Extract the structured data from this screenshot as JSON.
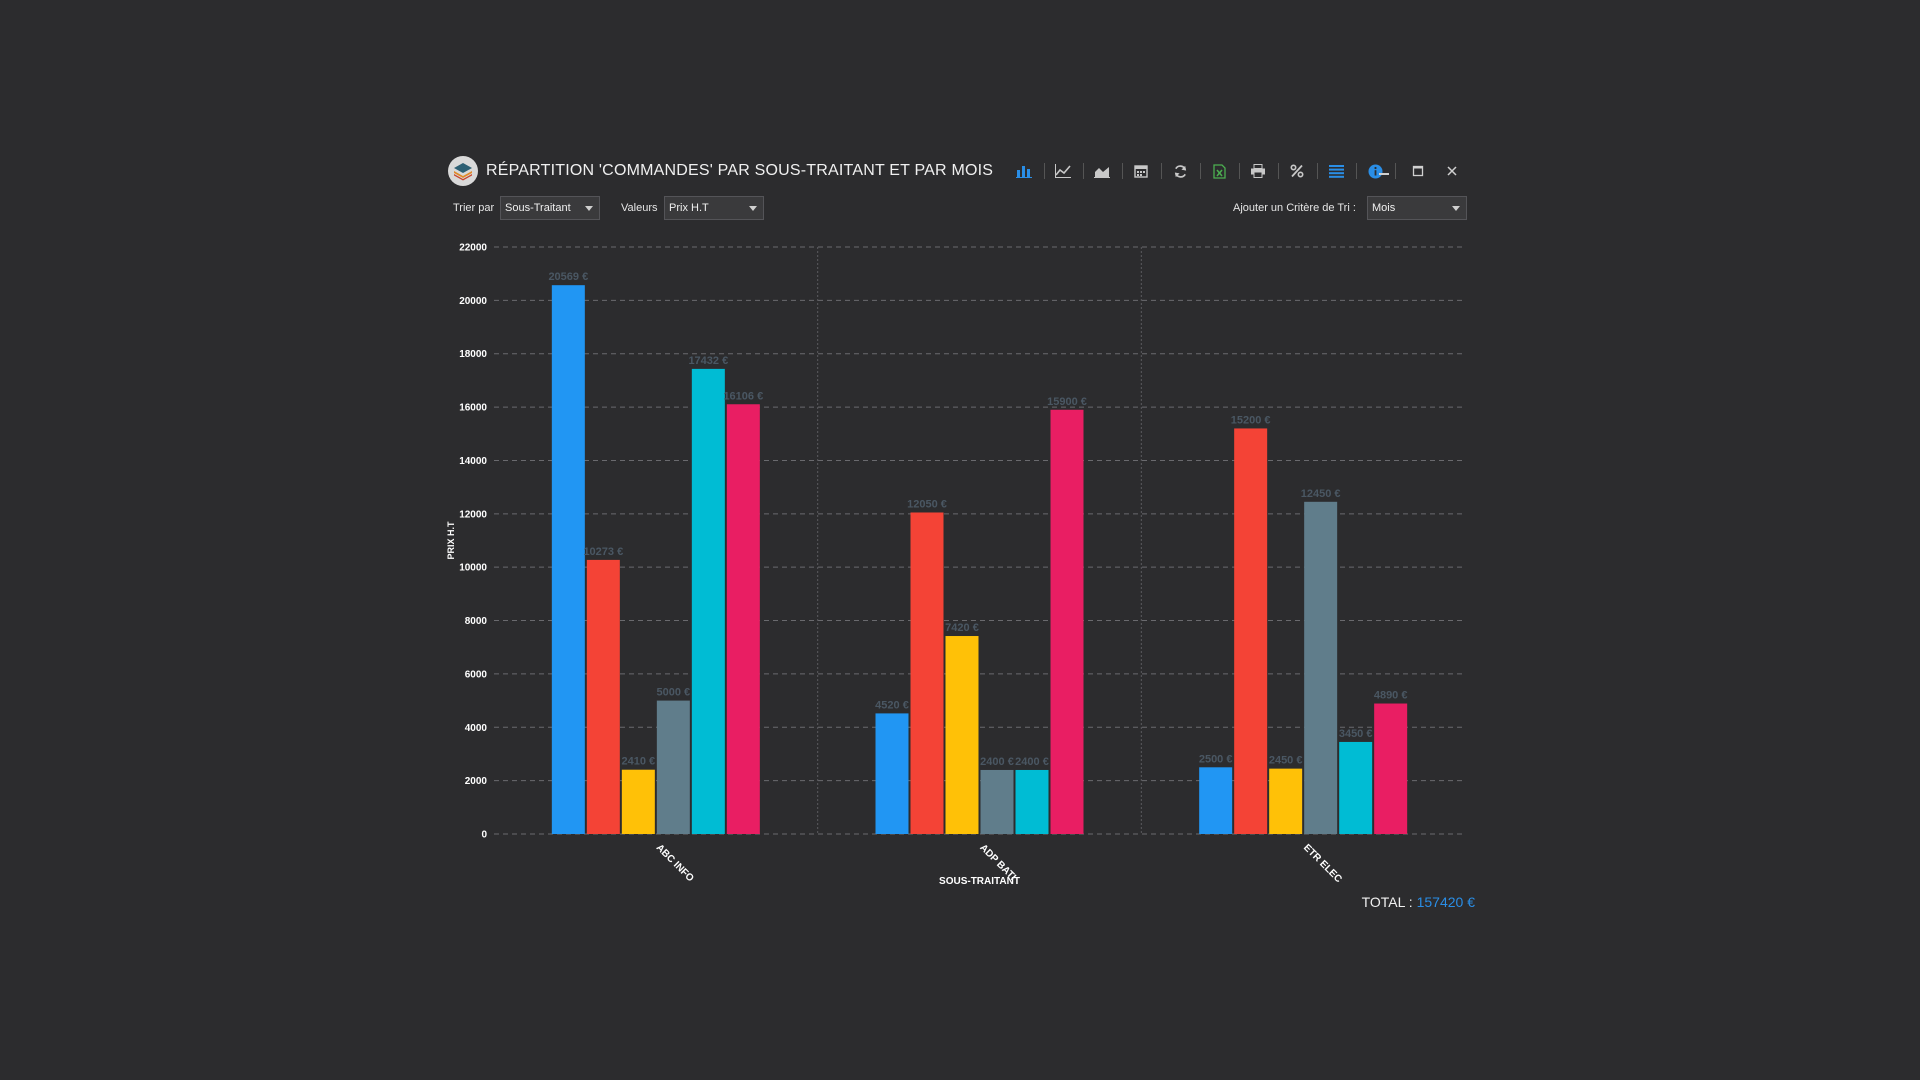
{
  "window": {
    "title": "RÉPARTITION 'COMMANDES' PAR SOUS-TRAITANT ET PAR MOIS",
    "toolbar_icons": [
      "bar-chart-icon",
      "line-chart-icon",
      "area-chart-icon",
      "calendar-icon",
      "refresh-icon",
      "excel-export-icon",
      "print-icon",
      "percent-icon",
      "list-icon",
      "info-icon"
    ],
    "controls": [
      "minimize-icon",
      "maximize-icon",
      "close-icon"
    ]
  },
  "filters": {
    "sort_label": "Trier par",
    "sort_value": "Sous-Traitant",
    "values_label": "Valeurs",
    "values_value": "Prix H.T",
    "criteria_label": "Ajouter un Critère de Tri :",
    "criteria_value": "Mois"
  },
  "chart_data": {
    "type": "bar",
    "xlabel": "SOUS-TRAITANT",
    "ylabel": "PRIX H.T",
    "ylim": [
      0,
      22000
    ],
    "yticks": [
      0,
      2000,
      4000,
      6000,
      8000,
      10000,
      12000,
      14000,
      16000,
      18000,
      20000,
      22000
    ],
    "categories": [
      "ABC INFO",
      "ADP BATI",
      "ETR ELEC"
    ],
    "value_suffix": " €",
    "grid": true,
    "series_colors": [
      "#2196f3",
      "#f44336",
      "#ffc107",
      "#607d8b",
      "#00bcd4",
      "#e91e63"
    ],
    "series": [
      {
        "values": [
          20569,
          4520,
          2500
        ]
      },
      {
        "values": [
          10273,
          12050,
          15200
        ]
      },
      {
        "values": [
          2410,
          7420,
          2450
        ]
      },
      {
        "values": [
          5000,
          2400,
          12450
        ]
      },
      {
        "values": [
          17432,
          2400,
          3450
        ]
      },
      {
        "values": [
          16106,
          15900,
          4890
        ]
      }
    ]
  },
  "total": {
    "label": "TOTAL :",
    "value": "157420 €"
  }
}
